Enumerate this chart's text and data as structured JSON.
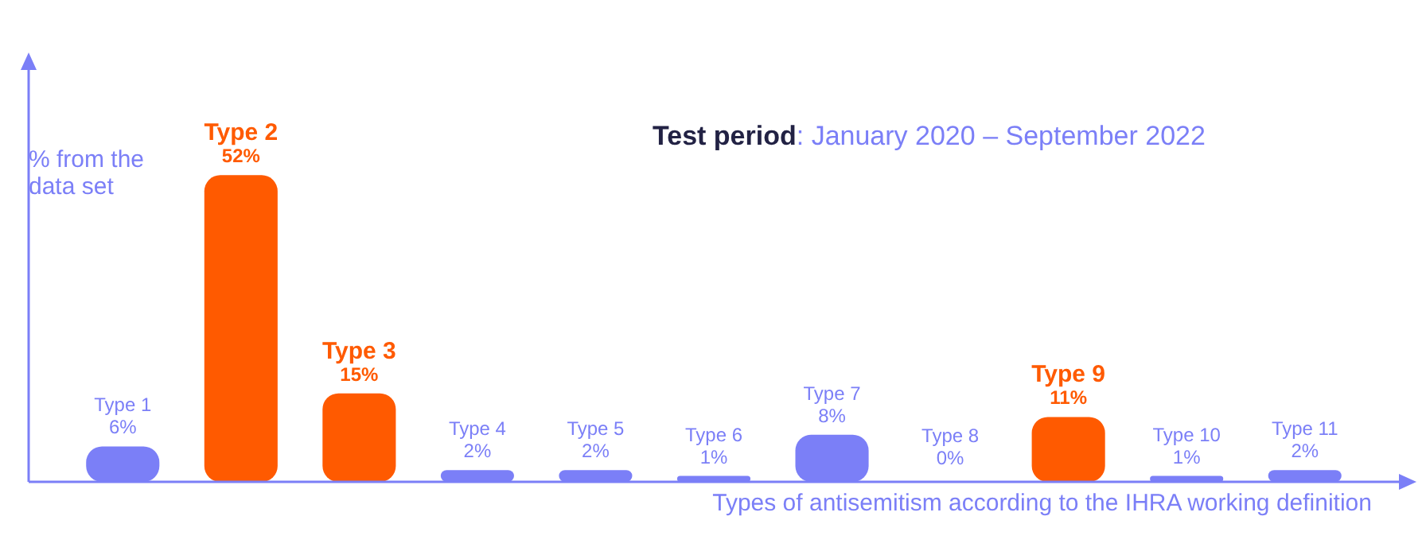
{
  "chart_data": {
    "type": "bar",
    "title": "Test period: January 2020 – September 2022",
    "ylabel": "% from the data set",
    "xlabel": "Types of antisemitism according to the IHRA working definition",
    "categories": [
      "Type 1",
      "Type 2",
      "Type 3",
      "Type 4",
      "Type 5",
      "Type 6",
      "Type 7",
      "Type 8",
      "Type 9",
      "Type 10",
      "Type 11"
    ],
    "values": [
      6,
      52,
      15,
      2,
      2,
      1,
      8,
      0,
      11,
      1,
      2
    ],
    "value_labels": [
      "6%",
      "52%",
      "15%",
      "2%",
      "2%",
      "1%",
      "8%",
      "0%",
      "11%",
      "1%",
      "2%"
    ],
    "colors": [
      "#7b7ff7",
      "#ff5a00",
      "#ff5a00",
      "#7b7ff7",
      "#7b7ff7",
      "#7b7ff7",
      "#7b7ff7",
      "#7b7ff7",
      "#ff5a00",
      "#7b7ff7",
      "#7b7ff7"
    ],
    "legend": false
  }
}
